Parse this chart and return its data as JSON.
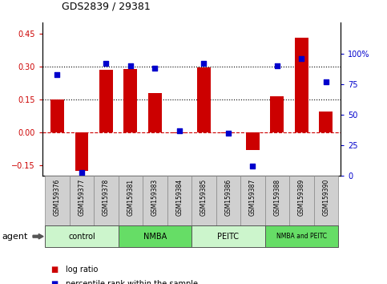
{
  "title": "GDS2839 / 29381",
  "samples": [
    "GSM159376",
    "GSM159377",
    "GSM159378",
    "GSM159381",
    "GSM159383",
    "GSM159384",
    "GSM159385",
    "GSM159386",
    "GSM159387",
    "GSM159388",
    "GSM159389",
    "GSM159390"
  ],
  "log_ratio": [
    0.148,
    -0.175,
    0.285,
    0.288,
    0.18,
    -0.005,
    0.295,
    -0.005,
    -0.08,
    0.165,
    0.43,
    0.095
  ],
  "percentile_rank": [
    83,
    3,
    92,
    90,
    88,
    37,
    92,
    35,
    8,
    90,
    96,
    77
  ],
  "groups": [
    {
      "label": "control",
      "start": 0,
      "end": 3,
      "color": "#ccf5cc"
    },
    {
      "label": "NMBA",
      "start": 3,
      "end": 6,
      "color": "#66dd66"
    },
    {
      "label": "PEITC",
      "start": 6,
      "end": 9,
      "color": "#ccf5cc"
    },
    {
      "label": "NMBA and PEITC",
      "start": 9,
      "end": 12,
      "color": "#66dd66"
    }
  ],
  "bar_color": "#cc0000",
  "dot_color": "#0000cc",
  "ylim_left": [
    -0.2,
    0.5
  ],
  "ylim_right": [
    0,
    125
  ],
  "yticks_left": [
    -0.15,
    0,
    0.15,
    0.3,
    0.45
  ],
  "yticks_right": [
    0,
    25,
    50,
    75,
    100
  ],
  "hlines": [
    0.15,
    0.3
  ],
  "hline_zero_color": "#cc0000",
  "bar_width": 0.55,
  "agent_label": "agent",
  "legend_items": [
    {
      "label": "log ratio",
      "color": "#cc0000"
    },
    {
      "label": "percentile rank within the sample",
      "color": "#0000cc"
    }
  ]
}
